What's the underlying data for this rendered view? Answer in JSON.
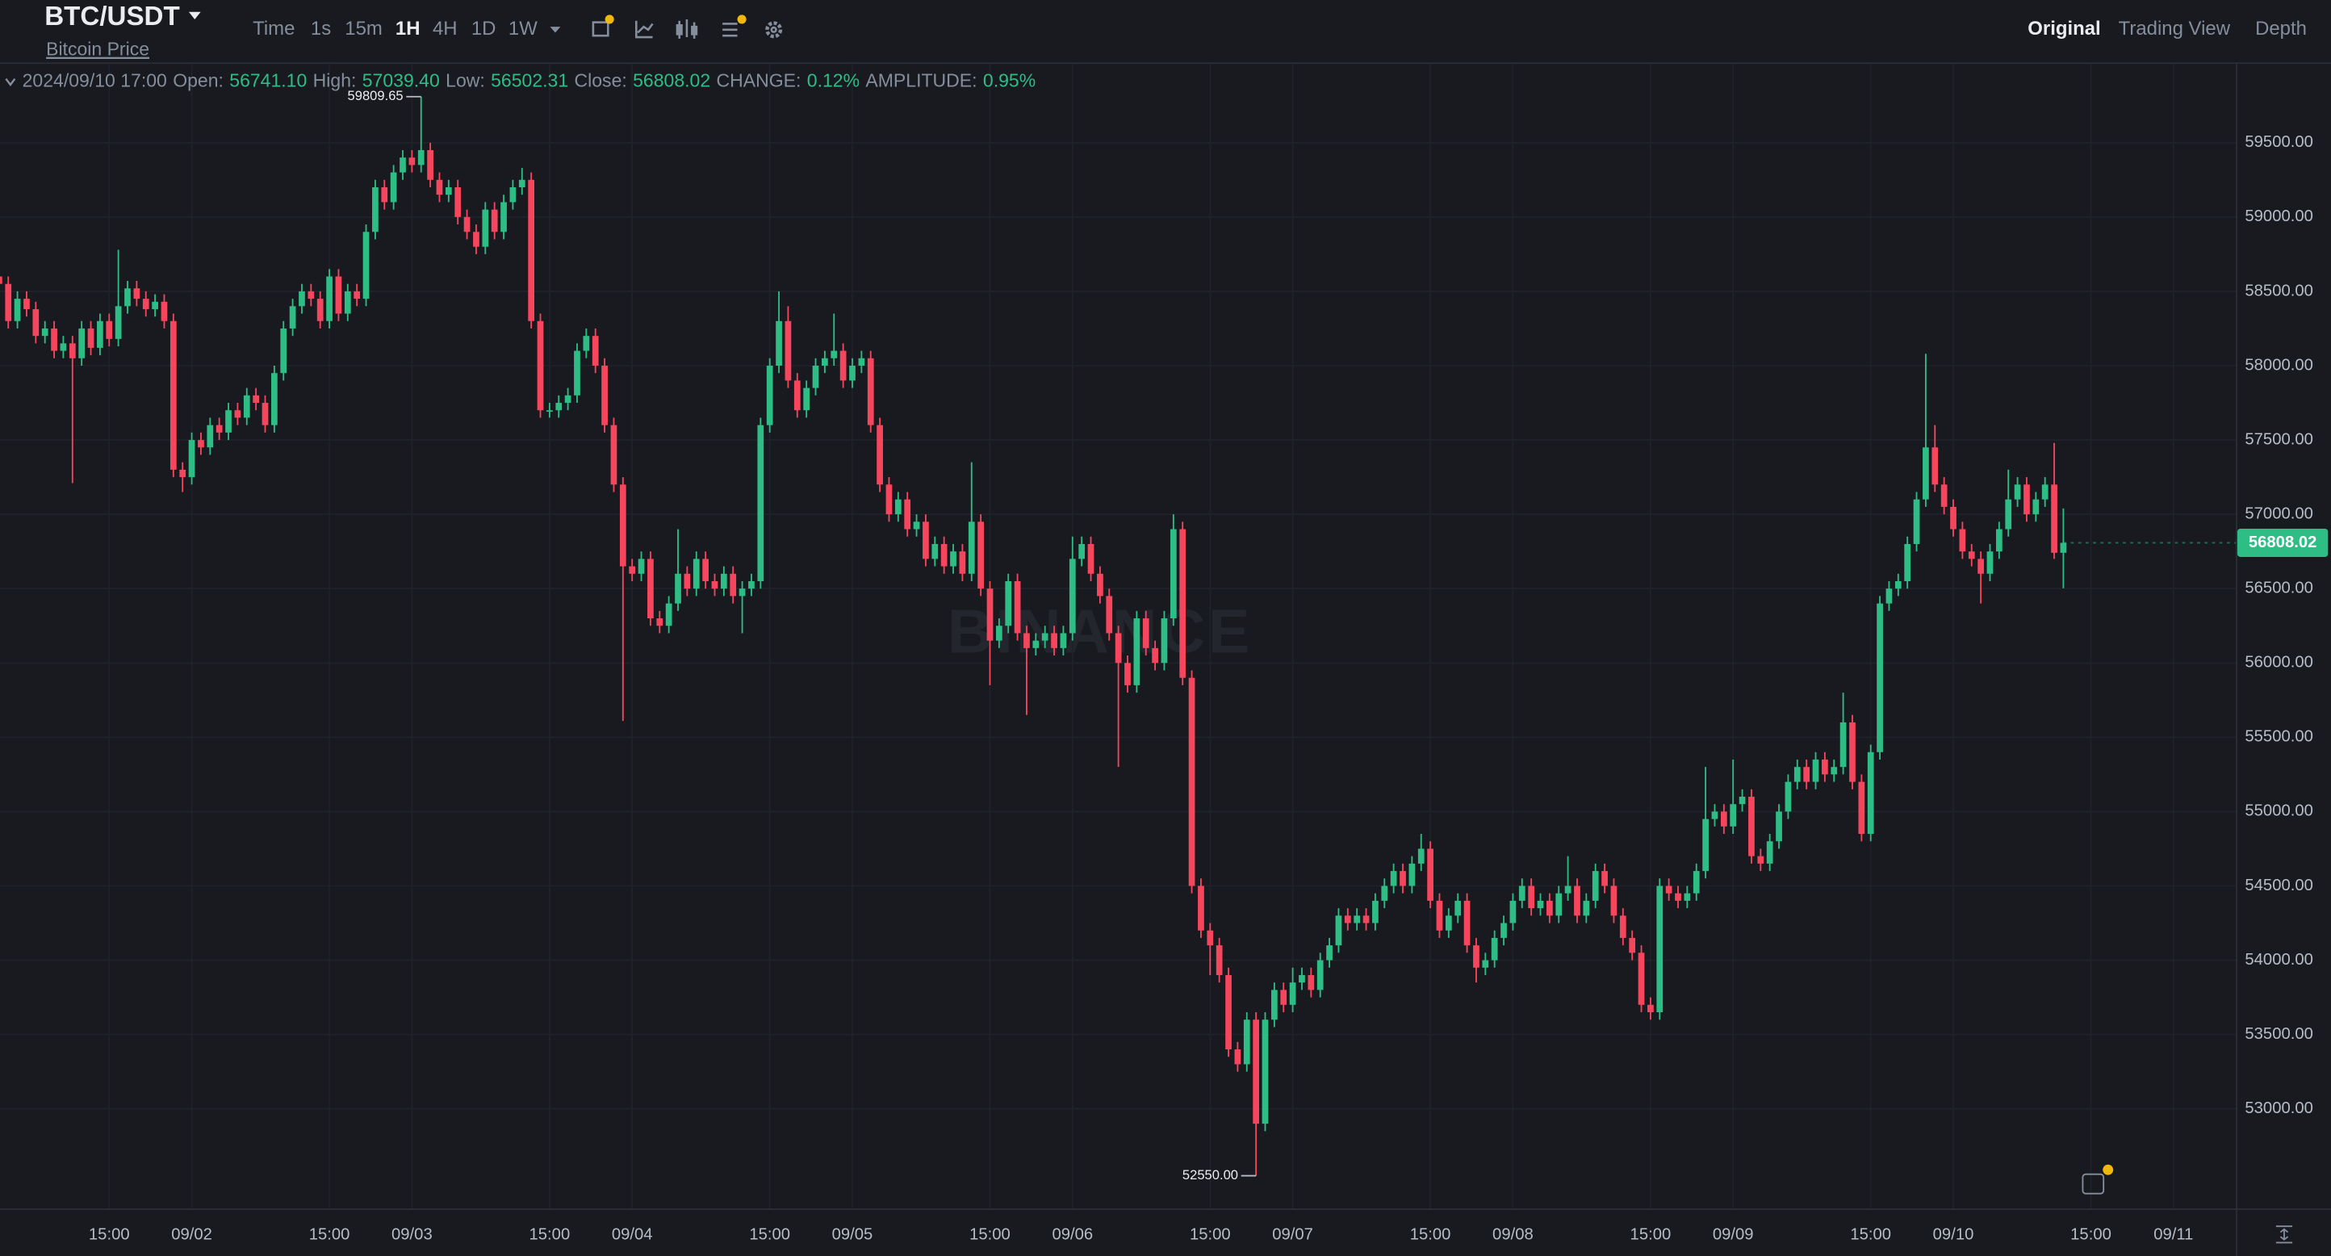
{
  "header": {
    "symbol": "BTC/USDT",
    "subtitle": "Bitcoin Price",
    "intervals": [
      "Time",
      "1s",
      "15m",
      "1H",
      "4H",
      "1D",
      "1W"
    ],
    "views": [
      "Original",
      "Trading View",
      "Depth"
    ]
  },
  "info_bar": {
    "time": "2024/09/10 17:00",
    "items": [
      {
        "label": "Open:",
        "value": "56741.10"
      },
      {
        "label": "High:",
        "value": "57039.40"
      },
      {
        "label": "Low:",
        "value": "56502.31"
      },
      {
        "label": "Close:",
        "value": "56808.02"
      },
      {
        "label": "CHANGE:",
        "value": "0.12%"
      },
      {
        "label": "AMPLITUDE:",
        "value": "0.95%"
      }
    ]
  },
  "chart_data": {
    "type": "candlestick",
    "watermark": "BINANCE",
    "up_color": "#2ebd85",
    "down_color": "#f6465d",
    "grid": true,
    "open": [
      58600,
      58550,
      58300,
      58450,
      58380,
      58200,
      58250,
      58100,
      58150,
      58050,
      58250,
      58120,
      58300,
      58180,
      58400,
      58520,
      58450,
      58380,
      58430,
      58300,
      57300,
      57250,
      57500,
      57450,
      57600,
      57550,
      57700,
      57650,
      57800,
      57750,
      57600,
      57950,
      58250,
      58400,
      58500,
      58450,
      58300,
      58600,
      58350,
      58500,
      58450,
      58900,
      59200,
      59100,
      59300,
      59400,
      59350,
      59450,
      59250,
      59150,
      59200,
      59000,
      58900,
      58800,
      59050,
      58900,
      59100,
      59200,
      59250,
      58300,
      57700,
      57700,
      57750,
      57800,
      58100,
      58200,
      58000,
      57600,
      57200,
      56650,
      56600,
      56700,
      56300,
      56250,
      56400,
      56600,
      56500,
      56700,
      56550,
      56500,
      56600,
      56450,
      56500,
      56550,
      57600,
      58000,
      58300,
      57900,
      57700,
      57850,
      58000,
      58050,
      58100,
      57900,
      58000,
      58050,
      57600,
      57200,
      57000,
      57100,
      56900,
      56950,
      56700,
      56800,
      56650,
      56750,
      56600,
      56950,
      56500,
      56150,
      56250,
      56550,
      56200,
      56100,
      56150,
      56200,
      56100,
      56200,
      56700,
      56800,
      56600,
      56450,
      56200,
      56000,
      55850,
      56300,
      56100,
      56000,
      56300,
      56900,
      55900,
      54500,
      54200,
      54100,
      53900,
      53400,
      53300,
      53600,
      52900,
      53600,
      53800,
      53700,
      53850,
      53900,
      53800,
      54000,
      54100,
      54300,
      54250,
      54300,
      54250,
      54400,
      54500,
      54600,
      54500,
      54650,
      54750,
      54400,
      54200,
      54300,
      54400,
      54100,
      53950,
      54000,
      54150,
      54250,
      54400,
      54500,
      54350,
      54400,
      54300,
      54450,
      54500,
      54300,
      54400,
      54600,
      54500,
      54300,
      54150,
      54050,
      53700,
      53650,
      54500,
      54450,
      54400,
      54450,
      54600,
      54950,
      55000,
      54900,
      55050,
      55100,
      54700,
      54650,
      54800,
      55000,
      55200,
      55300,
      55200,
      55350,
      55250,
      55300,
      55600,
      55200,
      54850,
      55400,
      56400,
      56500,
      56550,
      56800,
      57100,
      57450,
      57200,
      57050,
      56900,
      56750,
      56700,
      56600,
      56750,
      56900,
      57100,
      57200,
      57000,
      57100,
      57200,
      56741.1
    ],
    "high": [
      58650,
      58600,
      58500,
      58500,
      58430,
      58300,
      58300,
      58200,
      58200,
      58300,
      58300,
      58350,
      58350,
      58780,
      58570,
      58570,
      58500,
      58480,
      58480,
      58350,
      57350,
      57550,
      57550,
      57650,
      57650,
      57750,
      57750,
      57850,
      57850,
      57800,
      58000,
      58300,
      58450,
      58550,
      58550,
      58500,
      58650,
      58650,
      58550,
      58550,
      58950,
      59250,
      59250,
      59350,
      59450,
      59450,
      59809.65,
      59500,
      59300,
      59250,
      59250,
      59050,
      58950,
      59100,
      59100,
      59150,
      59250,
      59330,
      59300,
      58350,
      57750,
      57800,
      57850,
      58150,
      58250,
      58250,
      58050,
      57650,
      57250,
      56700,
      56750,
      56750,
      56350,
      56450,
      56900,
      56650,
      56750,
      56750,
      56600,
      56650,
      56650,
      56550,
      56600,
      57650,
      58050,
      58500,
      58400,
      57950,
      57900,
      58050,
      58100,
      58350,
      58150,
      58050,
      58100,
      58100,
      57650,
      57250,
      57150,
      57150,
      57000,
      57000,
      56850,
      56850,
      56800,
      56800,
      57350,
      57000,
      56550,
      56300,
      56600,
      56600,
      56250,
      56200,
      56250,
      56250,
      56250,
      56850,
      56850,
      56850,
      56650,
      56500,
      56250,
      56050,
      56350,
      56350,
      56150,
      56350,
      57000,
      56950,
      55950,
      54550,
      54250,
      54150,
      53950,
      53450,
      53650,
      53650,
      53650,
      53850,
      53850,
      53950,
      53950,
      53950,
      54050,
      54150,
      54350,
      54350,
      54350,
      54350,
      54450,
      54550,
      54650,
      54650,
      54700,
      54850,
      54800,
      54450,
      54350,
      54450,
      54450,
      54150,
      54050,
      54200,
      54300,
      54450,
      54550,
      54550,
      54450,
      54450,
      54500,
      54700,
      54550,
      54450,
      54650,
      54650,
      54550,
      54350,
      54200,
      54100,
      53750,
      54550,
      54550,
      54500,
      54500,
      54650,
      55300,
      55050,
      55050,
      55350,
      55150,
      55150,
      54750,
      54850,
      55050,
      55250,
      55350,
      55350,
      55400,
      55400,
      55350,
      55800,
      55650,
      55250,
      55450,
      56450,
      56550,
      56600,
      56850,
      57150,
      58080,
      57600,
      57250,
      57100,
      56950,
      56800,
      56750,
      56800,
      56950,
      57300,
      57250,
      57250,
      57150,
      57250,
      57480,
      57039.4
    ],
    "low": [
      58500,
      58250,
      58250,
      58330,
      58150,
      58150,
      58050,
      58050,
      57210,
      58000,
      58070,
      58070,
      58130,
      58130,
      58350,
      58400,
      58330,
      58330,
      58250,
      57250,
      57150,
      57200,
      57400,
      57400,
      57500,
      57500,
      57600,
      57600,
      57700,
      57550,
      57550,
      57900,
      58200,
      58350,
      58400,
      58250,
      58250,
      58300,
      58300,
      58400,
      58400,
      58850,
      59050,
      59050,
      59250,
      59300,
      59300,
      59200,
      59100,
      59100,
      58950,
      58850,
      58750,
      58750,
      58850,
      58850,
      59050,
      59150,
      58250,
      57650,
      57650,
      57650,
      57700,
      57750,
      58050,
      57950,
      57550,
      57150,
      55610,
      56550,
      56550,
      56250,
      56200,
      56200,
      56350,
      56450,
      56450,
      56500,
      56450,
      56450,
      56400,
      56200,
      56450,
      56500,
      57550,
      57950,
      57850,
      57650,
      57650,
      57800,
      57950,
      58000,
      57850,
      57850,
      57950,
      57550,
      57150,
      56950,
      56950,
      56850,
      56850,
      56650,
      56650,
      56600,
      56600,
      56550,
      56550,
      56450,
      55850,
      56100,
      56200,
      56150,
      55650,
      56050,
      56100,
      56050,
      56050,
      56150,
      56650,
      56550,
      56400,
      56150,
      55300,
      55800,
      55800,
      56050,
      55950,
      55950,
      56250,
      55850,
      54450,
      54150,
      53900,
      53850,
      53350,
      53250,
      53250,
      52550,
      52850,
      53550,
      53650,
      53650,
      53800,
      53750,
      53750,
      53950,
      54050,
      54200,
      54200,
      54200,
      54200,
      54350,
      54450,
      54450,
      54450,
      54600,
      54350,
      54150,
      54150,
      54250,
      54050,
      53850,
      53900,
      53950,
      54100,
      54200,
      54350,
      54300,
      54300,
      54250,
      54250,
      54400,
      54250,
      54250,
      54350,
      54450,
      54250,
      54100,
      54000,
      53650,
      53600,
      53600,
      54400,
      54350,
      54350,
      54400,
      54550,
      54900,
      54850,
      54850,
      55000,
      54650,
      54600,
      54600,
      54750,
      54950,
      55150,
      55150,
      55150,
      55200,
      55200,
      55250,
      55150,
      54800,
      54800,
      55350,
      56350,
      56450,
      56500,
      56750,
      57050,
      57150,
      57000,
      56850,
      56700,
      56650,
      56400,
      56550,
      56700,
      56850,
      57050,
      56950,
      56950,
      57050,
      56700,
      56502.31
    ],
    "close": [
      58550,
      58300,
      58450,
      58380,
      58200,
      58250,
      58100,
      58150,
      58050,
      58250,
      58120,
      58300,
      58180,
      58400,
      58520,
      58450,
      58380,
      58430,
      58300,
      57300,
      57250,
      57500,
      57450,
      57600,
      57550,
      57700,
      57650,
      57800,
      57750,
      57600,
      57950,
      58250,
      58400,
      58500,
      58450,
      58300,
      58600,
      58350,
      58500,
      58450,
      58900,
      59200,
      59100,
      59300,
      59400,
      59350,
      59450,
      59250,
      59150,
      59200,
      59000,
      58900,
      58800,
      59050,
      58900,
      59100,
      59200,
      59250,
      58300,
      57700,
      57700,
      57750,
      57800,
      58100,
      58200,
      58000,
      57600,
      57200,
      56650,
      56600,
      56700,
      56300,
      56250,
      56400,
      56600,
      56500,
      56700,
      56550,
      56500,
      56600,
      56450,
      56500,
      56550,
      57600,
      58000,
      58300,
      57900,
      57700,
      57850,
      58000,
      58050,
      58100,
      57900,
      58000,
      58050,
      57600,
      57200,
      57000,
      57100,
      56900,
      56950,
      56700,
      56800,
      56650,
      56750,
      56600,
      56950,
      56500,
      56150,
      56250,
      56550,
      56200,
      56100,
      56150,
      56200,
      56100,
      56200,
      56700,
      56800,
      56600,
      56450,
      56200,
      56000,
      55850,
      56300,
      56100,
      56000,
      56300,
      56900,
      55900,
      54500,
      54200,
      54100,
      53900,
      53400,
      53300,
      53600,
      52900,
      53600,
      53800,
      53700,
      53850,
      53900,
      53800,
      54000,
      54100,
      54300,
      54250,
      54300,
      54250,
      54400,
      54500,
      54600,
      54500,
      54650,
      54750,
      54400,
      54200,
      54300,
      54400,
      54100,
      53950,
      54000,
      54150,
      54250,
      54400,
      54500,
      54350,
      54400,
      54300,
      54450,
      54500,
      54300,
      54400,
      54600,
      54500,
      54300,
      54150,
      54050,
      53700,
      53650,
      54500,
      54450,
      54400,
      54450,
      54600,
      54950,
      55000,
      54900,
      55050,
      55100,
      54700,
      54650,
      54800,
      55000,
      55200,
      55300,
      55200,
      55350,
      55250,
      55300,
      55600,
      55200,
      54850,
      55400,
      56400,
      56500,
      56550,
      56800,
      57100,
      57450,
      57200,
      57050,
      56900,
      56750,
      56700,
      56600,
      56750,
      56900,
      57100,
      57200,
      57000,
      57100,
      57200,
      56741.1,
      56808.02
    ],
    "xlim": [
      0.1,
      243.8
    ],
    "xticks": [
      {
        "value": 12,
        "label": "15:00"
      },
      {
        "value": 21,
        "label": "09/02"
      },
      {
        "value": 36,
        "label": "15:00"
      },
      {
        "value": 45,
        "label": "09/03"
      },
      {
        "value": 60,
        "label": "15:00"
      },
      {
        "value": 69,
        "label": "09/04"
      },
      {
        "value": 84,
        "label": "15:00"
      },
      {
        "value": 93,
        "label": "09/05"
      },
      {
        "value": 108,
        "label": "15:00"
      },
      {
        "value": 117,
        "label": "09/06"
      },
      {
        "value": 132,
        "label": "15:00"
      },
      {
        "value": 141,
        "label": "09/07"
      },
      {
        "value": 156,
        "label": "15:00"
      },
      {
        "value": 165,
        "label": "09/08"
      },
      {
        "value": 180,
        "label": "15:00"
      },
      {
        "value": 189,
        "label": "09/09"
      },
      {
        "value": 204,
        "label": "15:00"
      },
      {
        "value": 213,
        "label": "09/10"
      },
      {
        "value": 228,
        "label": "15:00"
      },
      {
        "value": 237,
        "label": "09/11"
      }
    ],
    "ylim": [
      52330,
      60030
    ],
    "yticks": [
      {
        "value": 53000,
        "label": "53000.00"
      },
      {
        "value": 53500,
        "label": "53500.00"
      },
      {
        "value": 54000,
        "label": "54000.00"
      },
      {
        "value": 54500,
        "label": "54500.00"
      },
      {
        "value": 55000,
        "label": "55000.00"
      },
      {
        "value": 55500,
        "label": "55500.00"
      },
      {
        "value": 56000,
        "label": "56000.00"
      },
      {
        "value": 56500,
        "label": "56500.00"
      },
      {
        "value": 57000,
        "label": "57000.00"
      },
      {
        "value": 57500,
        "label": "57500.00"
      },
      {
        "value": 58000,
        "label": "58000.00"
      },
      {
        "value": 58500,
        "label": "58500.00"
      },
      {
        "value": 59000,
        "label": "59000.00"
      },
      {
        "value": 59500,
        "label": "59500.00"
      }
    ],
    "annotations": [
      {
        "value": 59809.65,
        "label": "59809.65"
      },
      {
        "value": 52550,
        "label": "52550.00"
      }
    ]
  }
}
